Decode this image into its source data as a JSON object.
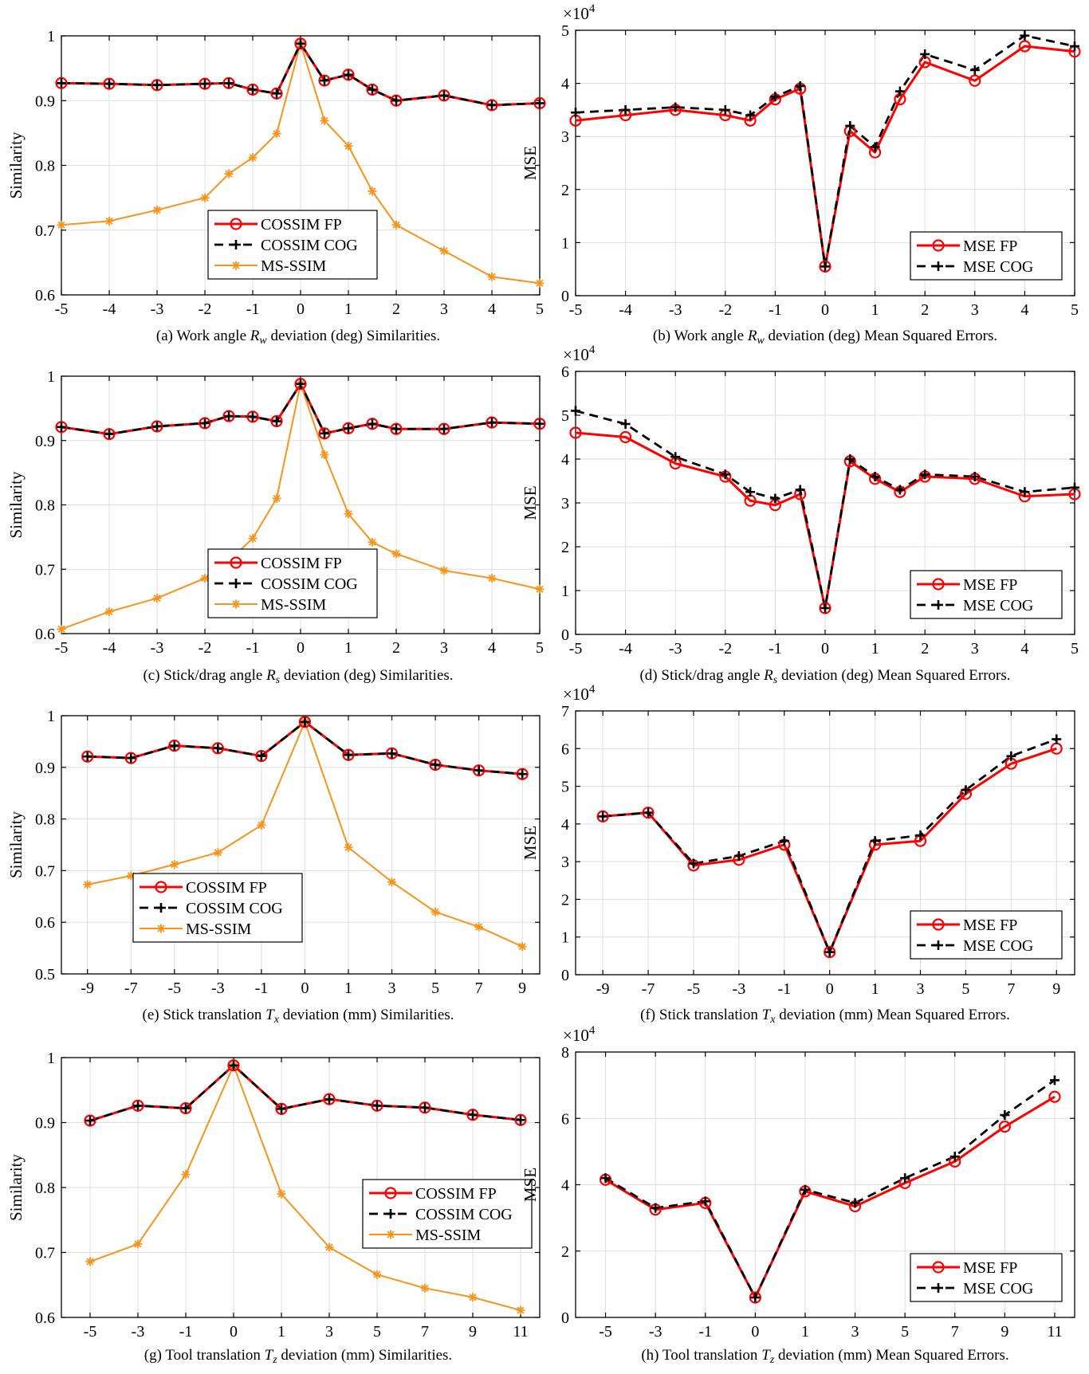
{
  "colors": {
    "fp": "#ff0000",
    "cog": "#000000",
    "msssim": "#f7941d",
    "grid": "#dedede",
    "axis": "#000000"
  },
  "chart_data": [
    {
      "id": "a",
      "type": "line",
      "caption_pre": "(a) Work angle ",
      "caption_sym": "R",
      "caption_sub": "w",
      "caption_post": " deviation (deg) Similarities.",
      "ylabel": "Similarity",
      "categories": [
        "-5",
        "-4",
        "-3",
        "-2",
        "-1",
        "0",
        "1",
        "2",
        "3",
        "4",
        "5"
      ],
      "x_categorical": false,
      "xlim": [
        -5,
        5
      ],
      "ylim": [
        0.6,
        1.0
      ],
      "yticks": [
        0.6,
        0.7,
        0.8,
        0.9,
        1
      ],
      "ytick_labels": [
        "0.6",
        "0.7",
        "0.8",
        "0.9",
        "1"
      ],
      "grid": true,
      "legend_position": "bottom-center",
      "x": [
        -5,
        -4,
        -3,
        -2,
        -1.5,
        -1,
        -0.5,
        0,
        0.5,
        1,
        1.5,
        2,
        3,
        4,
        5
      ],
      "series": [
        {
          "name": "COSSIM FP",
          "style": "fp",
          "values": [
            0.927,
            0.926,
            0.924,
            0.926,
            0.927,
            0.917,
            0.911,
            0.988,
            0.931,
            0.94,
            0.917,
            0.9,
            0.908,
            0.893,
            0.896
          ]
        },
        {
          "name": "COSSIM COG",
          "style": "cog",
          "values": [
            0.927,
            0.926,
            0.924,
            0.926,
            0.927,
            0.917,
            0.911,
            0.988,
            0.931,
            0.94,
            0.917,
            0.9,
            0.908,
            0.893,
            0.896
          ]
        },
        {
          "name": "MS-SSIM",
          "style": "msssim",
          "values": [
            0.708,
            0.714,
            0.731,
            0.75,
            0.787,
            0.812,
            0.849,
            0.988,
            0.869,
            0.83,
            0.76,
            0.708,
            0.668,
            0.628,
            0.618
          ]
        }
      ]
    },
    {
      "id": "b",
      "type": "line",
      "caption_pre": "(b) Work angle ",
      "caption_sym": "R",
      "caption_sub": "w",
      "caption_post": " deviation (deg) Mean Squared Errors.",
      "ylabel": "MSE",
      "exponent_label": "×10",
      "exponent_power": "4",
      "categories": [
        "-5",
        "-4",
        "-3",
        "-2",
        "-1",
        "0",
        "1",
        "2",
        "3",
        "4",
        "5"
      ],
      "x_categorical": false,
      "xlim": [
        -5,
        5
      ],
      "ylim": [
        0,
        5
      ],
      "yticks": [
        0,
        1,
        2,
        3,
        4,
        5
      ],
      "ytick_labels": [
        "0",
        "1",
        "2",
        "3",
        "4",
        "5"
      ],
      "grid": true,
      "legend_position": "bottom-right",
      "x": [
        -5,
        -4,
        -3,
        -2,
        -1.5,
        -1,
        -0.5,
        0,
        0.5,
        1,
        1.5,
        2,
        3,
        4,
        5
      ],
      "series": [
        {
          "name": "MSE FP",
          "style": "fp",
          "values": [
            3.3,
            3.4,
            3.5,
            3.4,
            3.3,
            3.7,
            3.9,
            0.55,
            3.1,
            2.7,
            3.7,
            4.4,
            4.05,
            4.7,
            4.6
          ]
        },
        {
          "name": "MSE COG",
          "style": "cog",
          "values": [
            3.45,
            3.5,
            3.55,
            3.5,
            3.4,
            3.75,
            3.95,
            0.55,
            3.2,
            2.8,
            3.85,
            4.55,
            4.25,
            4.9,
            4.7
          ]
        }
      ]
    },
    {
      "id": "c",
      "type": "line",
      "caption_pre": "(c) Stick/drag angle ",
      "caption_sym": "R",
      "caption_sub": "s",
      "caption_post": " deviation (deg) Similarities.",
      "ylabel": "Similarity",
      "categories": [
        "-5",
        "-4",
        "-3",
        "-2",
        "-1",
        "0",
        "1",
        "2",
        "3",
        "4",
        "5"
      ],
      "x_categorical": false,
      "xlim": [
        -5,
        5
      ],
      "ylim": [
        0.6,
        1.0
      ],
      "yticks": [
        0.6,
        0.7,
        0.8,
        0.9,
        1
      ],
      "ytick_labels": [
        "0.6",
        "0.7",
        "0.8",
        "0.9",
        "1"
      ],
      "grid": true,
      "legend_position": "bottom-center",
      "x": [
        -5,
        -4,
        -3,
        -2,
        -1.5,
        -1,
        -0.5,
        0,
        0.5,
        1,
        1.5,
        2,
        3,
        4,
        5
      ],
      "series": [
        {
          "name": "COSSIM FP",
          "style": "fp",
          "values": [
            0.921,
            0.91,
            0.922,
            0.927,
            0.938,
            0.937,
            0.93,
            0.988,
            0.911,
            0.919,
            0.926,
            0.918,
            0.918,
            0.928,
            0.926
          ]
        },
        {
          "name": "COSSIM COG",
          "style": "cog",
          "values": [
            0.921,
            0.91,
            0.922,
            0.927,
            0.938,
            0.937,
            0.93,
            0.988,
            0.911,
            0.919,
            0.926,
            0.918,
            0.918,
            0.928,
            0.926
          ]
        },
        {
          "name": "MS-SSIM",
          "style": "msssim",
          "values": [
            0.607,
            0.634,
            0.655,
            0.686,
            0.713,
            0.748,
            0.81,
            0.988,
            0.878,
            0.786,
            0.742,
            0.724,
            0.698,
            0.686,
            0.669
          ]
        }
      ]
    },
    {
      "id": "d",
      "type": "line",
      "caption_pre": "(d) Stick/drag angle ",
      "caption_sym": "R",
      "caption_sub": "s",
      "caption_post": " deviation (deg) Mean Squared Errors.",
      "ylabel": "MSE",
      "exponent_label": "×10",
      "exponent_power": "4",
      "categories": [
        "-5",
        "-4",
        "-3",
        "-2",
        "-1",
        "0",
        "1",
        "2",
        "3",
        "4",
        "5"
      ],
      "x_categorical": false,
      "xlim": [
        -5,
        5
      ],
      "ylim": [
        0,
        6
      ],
      "yticks": [
        0,
        1,
        2,
        3,
        4,
        5,
        6
      ],
      "ytick_labels": [
        "0",
        "1",
        "2",
        "3",
        "4",
        "5",
        "6"
      ],
      "grid": true,
      "legend_position": "bottom-right",
      "x": [
        -5,
        -4,
        -3,
        -2,
        -1.5,
        -1,
        -0.5,
        0,
        0.5,
        1,
        1.5,
        2,
        3,
        4,
        5
      ],
      "series": [
        {
          "name": "MSE FP",
          "style": "fp",
          "values": [
            4.6,
            4.5,
            3.9,
            3.6,
            3.05,
            2.95,
            3.2,
            0.6,
            3.95,
            3.55,
            3.25,
            3.6,
            3.55,
            3.15,
            3.2
          ]
        },
        {
          "name": "MSE COG",
          "style": "cog",
          "values": [
            5.1,
            4.8,
            4.05,
            3.65,
            3.25,
            3.1,
            3.3,
            0.6,
            4.0,
            3.6,
            3.3,
            3.65,
            3.6,
            3.25,
            3.35
          ]
        }
      ]
    },
    {
      "id": "e",
      "type": "line",
      "caption_pre": "(e) Stick translation ",
      "caption_sym": "T",
      "caption_sub": "x",
      "caption_post": " deviation (mm) Similarities.",
      "ylabel": "Similarity",
      "categories": [
        "-9",
        "-7",
        "-5",
        "-3",
        "-1",
        "0",
        "1",
        "3",
        "5",
        "7",
        "9"
      ],
      "x_categorical": true,
      "xlim": [
        -0.6,
        10.4
      ],
      "ylim": [
        0.5,
        1.0
      ],
      "yticks": [
        0.5,
        0.6,
        0.7,
        0.8,
        0.9,
        1
      ],
      "ytick_labels": [
        "0.5",
        "0.6",
        "0.7",
        "0.8",
        "0.9",
        "1"
      ],
      "grid": true,
      "legend_position": "bottom-left",
      "series": [
        {
          "name": "COSSIM FP",
          "style": "fp",
          "values": [
            0.921,
            0.918,
            0.942,
            0.937,
            0.922,
            0.988,
            0.924,
            0.927,
            0.905,
            0.894,
            0.887
          ]
        },
        {
          "name": "COSSIM COG",
          "style": "cog",
          "values": [
            0.921,
            0.918,
            0.942,
            0.937,
            0.922,
            0.988,
            0.924,
            0.927,
            0.905,
            0.894,
            0.887
          ]
        },
        {
          "name": "MS-SSIM",
          "style": "msssim",
          "values": [
            0.673,
            0.69,
            0.712,
            0.735,
            0.788,
            0.988,
            0.745,
            0.678,
            0.62,
            0.591,
            0.553
          ]
        }
      ]
    },
    {
      "id": "f",
      "type": "line",
      "caption_pre": "(f) Stick translation ",
      "caption_sym": "T",
      "caption_sub": "x",
      "caption_post": " deviation (mm) Mean Squared Errors.",
      "ylabel": "MSE",
      "exponent_label": "×10",
      "exponent_power": "4",
      "categories": [
        "-9",
        "-7",
        "-5",
        "-3",
        "-1",
        "0",
        "1",
        "3",
        "5",
        "7",
        "9"
      ],
      "x_categorical": true,
      "xlim": [
        -0.6,
        10.4
      ],
      "ylim": [
        0,
        7
      ],
      "yticks": [
        0,
        1,
        2,
        3,
        4,
        5,
        6,
        7
      ],
      "ytick_labels": [
        "0",
        "1",
        "2",
        "3",
        "4",
        "5",
        "6",
        "7"
      ],
      "grid": true,
      "legend_position": "bottom-right",
      "series": [
        {
          "name": "MSE FP",
          "style": "fp",
          "values": [
            4.2,
            4.3,
            2.9,
            3.05,
            3.45,
            0.6,
            3.45,
            3.55,
            4.8,
            5.6,
            6.0
          ]
        },
        {
          "name": "MSE COG",
          "style": "cog",
          "values": [
            4.2,
            4.3,
            2.95,
            3.15,
            3.55,
            0.6,
            3.55,
            3.7,
            4.9,
            5.8,
            6.25
          ]
        }
      ]
    },
    {
      "id": "g",
      "type": "line",
      "caption_pre": "(g) Tool translation ",
      "caption_sym": "T",
      "caption_sub": "z",
      "caption_post": " deviation (mm) Similarities.",
      "ylabel": "Similarity",
      "categories": [
        "-5",
        "-3",
        "-1",
        "0",
        "1",
        "3",
        "5",
        "7",
        "9",
        "11"
      ],
      "x_categorical": true,
      "xlim": [
        -0.6,
        9.4
      ],
      "ylim": [
        0.6,
        1.0
      ],
      "yticks": [
        0.6,
        0.7,
        0.8,
        0.9,
        1
      ],
      "ytick_labels": [
        "0.6",
        "0.7",
        "0.8",
        "0.9",
        "1"
      ],
      "grid": true,
      "legend_position": "center-right",
      "series": [
        {
          "name": "COSSIM FP",
          "style": "fp",
          "values": [
            0.903,
            0.926,
            0.922,
            0.988,
            0.921,
            0.936,
            0.926,
            0.923,
            0.912,
            0.904
          ]
        },
        {
          "name": "COSSIM COG",
          "style": "cog",
          "values": [
            0.903,
            0.926,
            0.922,
            0.988,
            0.921,
            0.936,
            0.926,
            0.923,
            0.912,
            0.904
          ]
        },
        {
          "name": "MS-SSIM",
          "style": "msssim",
          "values": [
            0.686,
            0.713,
            0.82,
            0.988,
            0.79,
            0.708,
            0.666,
            0.645,
            0.631,
            0.611
          ]
        }
      ]
    },
    {
      "id": "h",
      "type": "line",
      "caption_pre": "(h) Tool translation ",
      "caption_sym": "T",
      "caption_sub": "z",
      "caption_post": " deviation (mm) Mean Squared Errors.",
      "ylabel": "MSE",
      "exponent_label": "×10",
      "exponent_power": "4",
      "categories": [
        "-5",
        "-3",
        "-1",
        "0",
        "1",
        "3",
        "5",
        "7",
        "9",
        "11"
      ],
      "x_categorical": true,
      "xlim": [
        -0.6,
        9.4
      ],
      "ylim": [
        0,
        8
      ],
      "yticks": [
        0,
        2,
        4,
        6,
        8
      ],
      "ytick_labels": [
        "0",
        "2",
        "4",
        "6",
        "8"
      ],
      "grid": true,
      "legend_position": "bottom-right",
      "series": [
        {
          "name": "MSE FP",
          "style": "fp",
          "values": [
            4.15,
            3.25,
            3.45,
            0.6,
            3.8,
            3.35,
            4.05,
            4.7,
            5.75,
            6.65
          ]
        },
        {
          "name": "MSE COG",
          "style": "cog",
          "values": [
            4.2,
            3.3,
            3.5,
            0.6,
            3.85,
            3.45,
            4.2,
            4.85,
            6.1,
            7.15
          ]
        }
      ]
    }
  ]
}
